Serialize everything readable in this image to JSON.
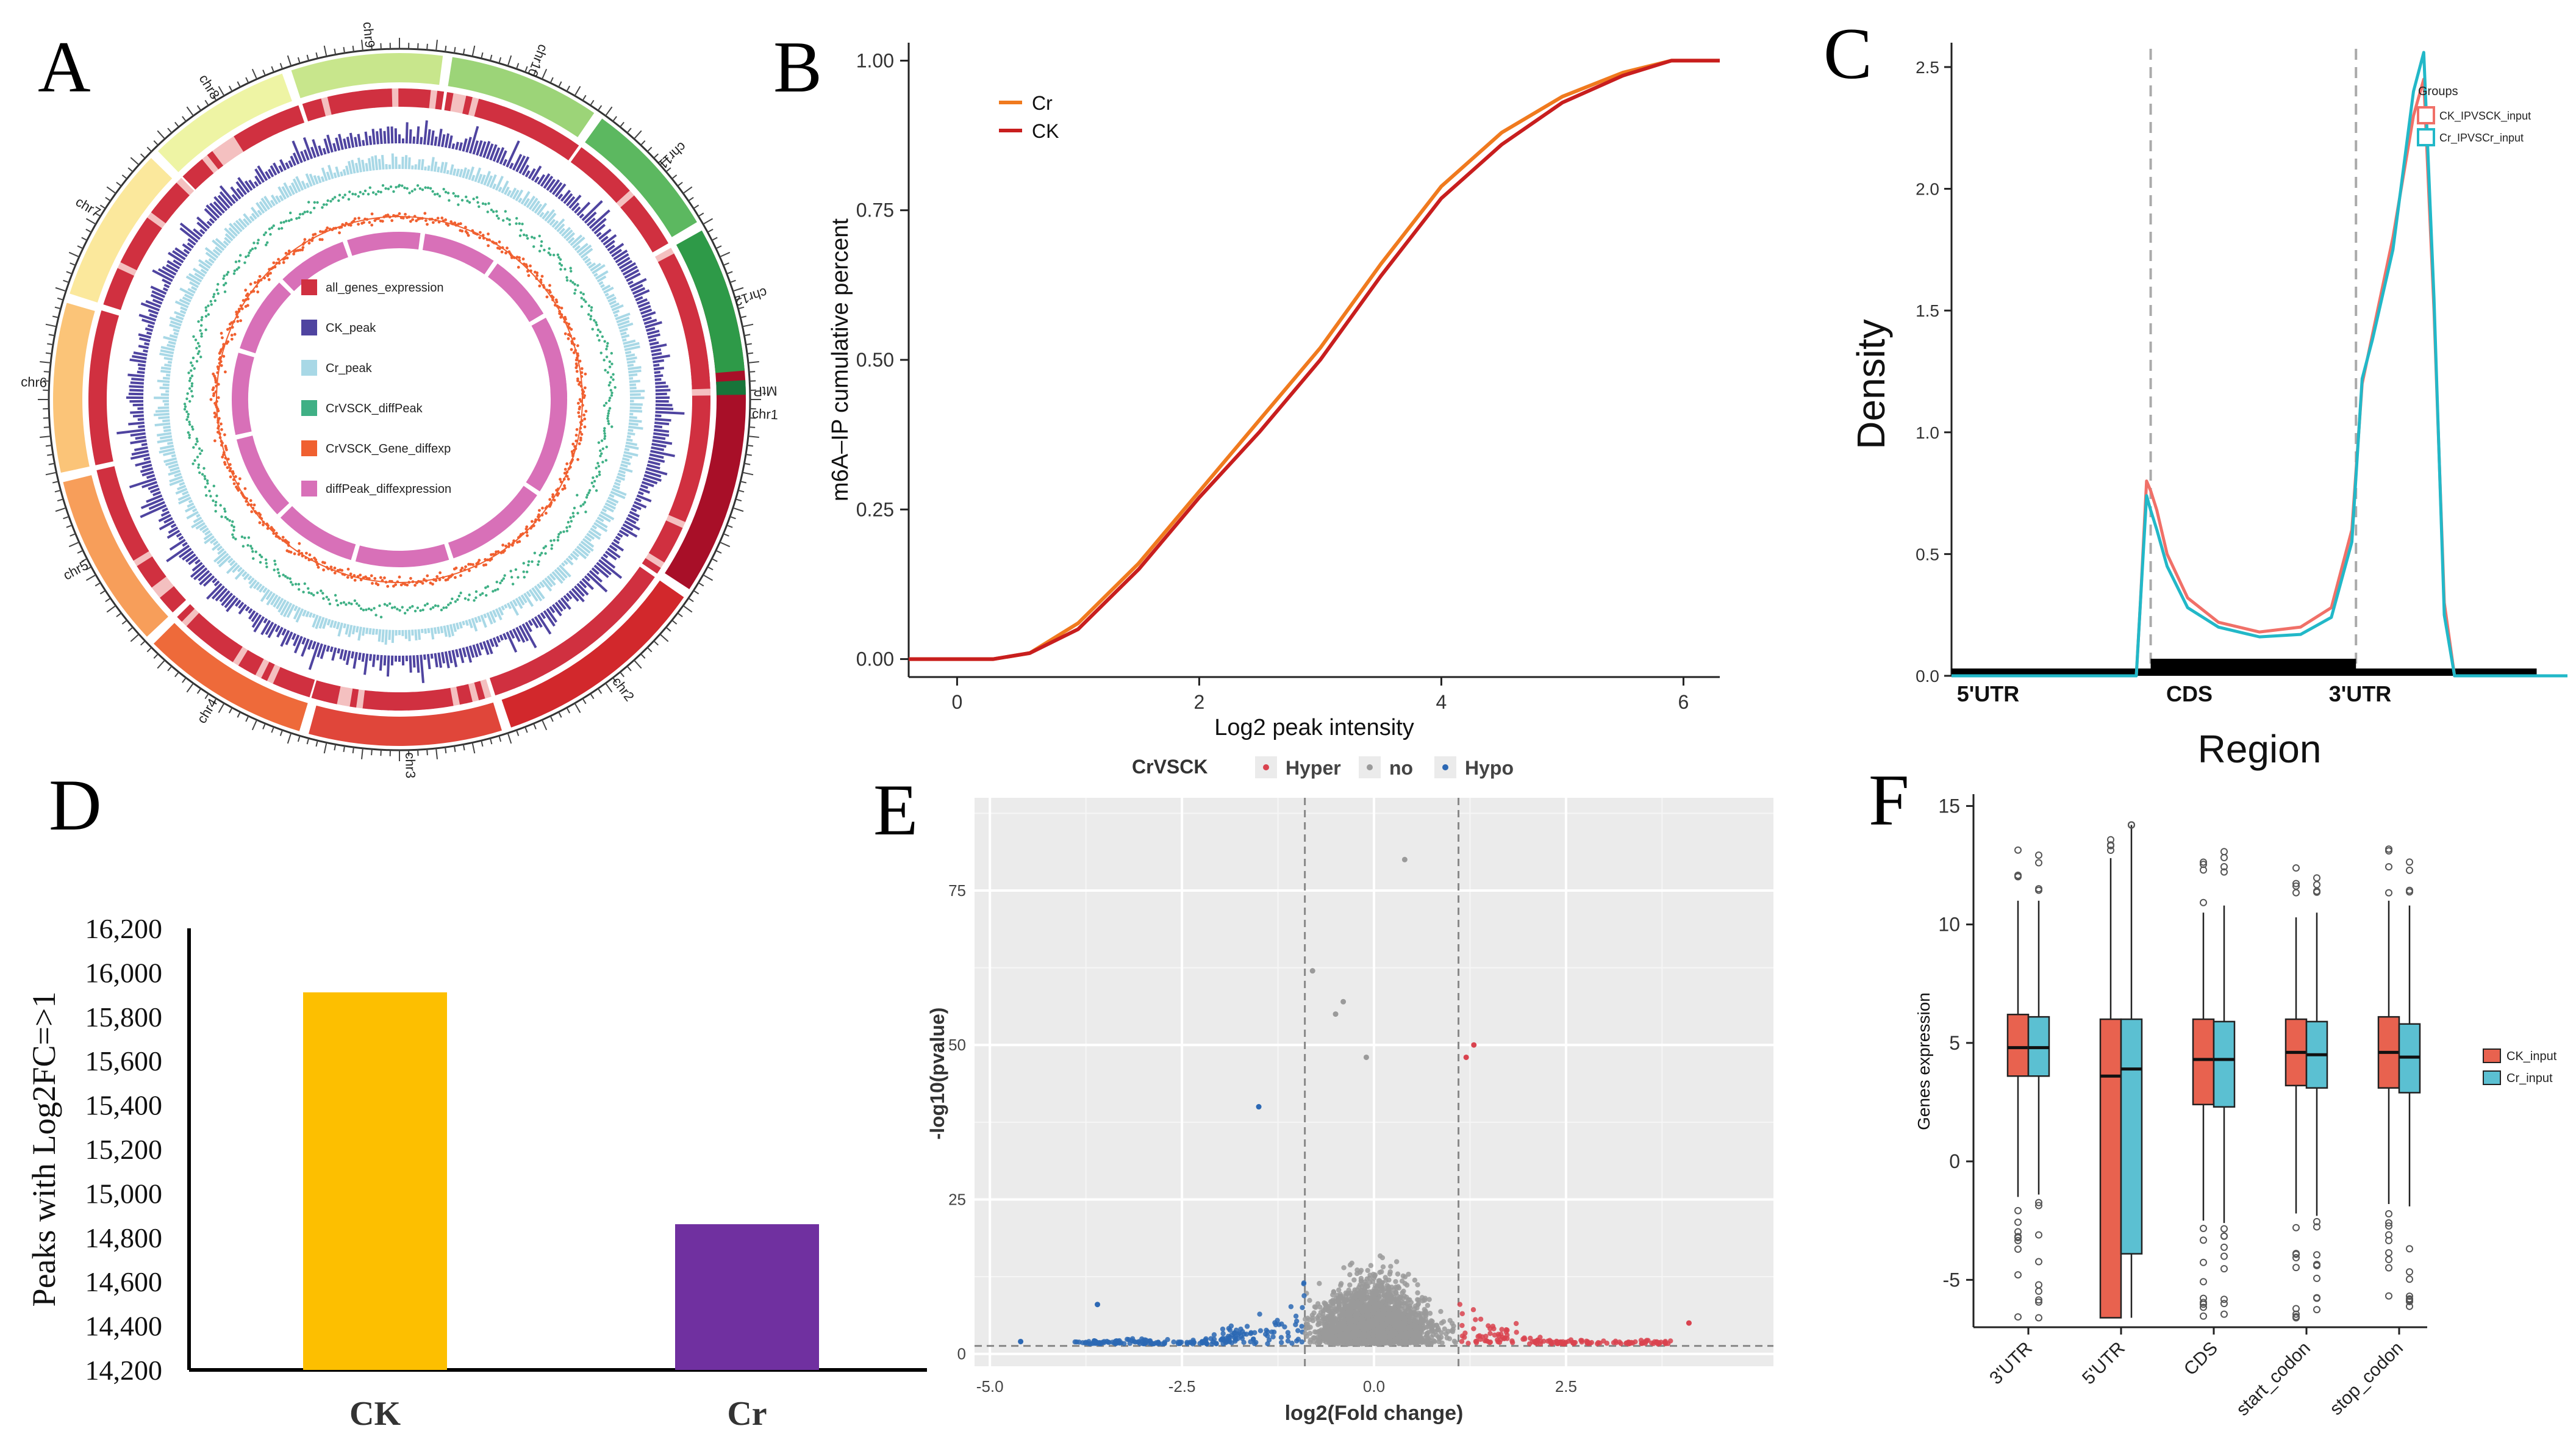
{
  "colors": {
    "cr": "#f07a1e",
    "ck": "#c81e1e",
    "ckline_c": "#f07068",
    "crline_c": "#22b8c8",
    "bar_ck": "#fdbf00",
    "bar_cr": "#7030a0",
    "hyper": "#d9434f",
    "no": "#9a9a9a",
    "hypo": "#2c68b4",
    "box_ck": "#e8624f",
    "box_cr": "#5bc0d2",
    "track_expr": "#d03040",
    "track_ck": "#4f44a0",
    "track_cr": "#a8d8e6",
    "track_diffpeak": "#3fb085",
    "track_gene": "#f06030",
    "track_dpexp": "#d870b8"
  },
  "panels": {
    "A": "A",
    "B": "B",
    "C": "C",
    "D": "D",
    "E": "E",
    "F": "F"
  },
  "chart_data": [
    {
      "panel": "A",
      "type": "other",
      "chromosomes": [
        "chr1",
        "chr2",
        "chr3",
        "chr4",
        "chr5",
        "chr6",
        "chr7",
        "chr8",
        "chr9",
        "chr10",
        "chr11",
        "chr12",
        "MtP"
      ],
      "legend": [
        "all_genes_expression",
        "CK_peak",
        "Cr_peak",
        "CrVSCK_diffPeak",
        "CrVSCK_Gene_diffexp",
        "diffPeak_diffexpression"
      ]
    },
    {
      "panel": "B",
      "type": "line",
      "xlabel": "Log2 peak intensity",
      "ylabel": "m6A–IP cumulative percent",
      "xlim": [
        -0.4,
        6.3
      ],
      "ylim": [
        -0.03,
        1.03
      ],
      "xticks": [
        0,
        2,
        4,
        6
      ],
      "yticks": [
        "0.00",
        "0.25",
        "0.50",
        "0.75",
        "1.00"
      ],
      "legend": [
        "Cr",
        "CK"
      ],
      "series": [
        {
          "name": "Cr",
          "x": [
            -0.4,
            0.3,
            0.6,
            1.0,
            1.5,
            2.0,
            2.5,
            3.0,
            3.5,
            4.0,
            4.5,
            5.0,
            5.5,
            5.9,
            6.3
          ],
          "y": [
            0,
            0,
            0.01,
            0.06,
            0.16,
            0.28,
            0.4,
            0.52,
            0.66,
            0.79,
            0.88,
            0.94,
            0.98,
            1.0,
            1.0
          ]
        },
        {
          "name": "CK",
          "x": [
            -0.4,
            0.3,
            0.6,
            1.0,
            1.5,
            2.0,
            2.5,
            3.0,
            3.5,
            4.0,
            4.5,
            5.0,
            5.5,
            5.9,
            6.3
          ],
          "y": [
            0,
            0,
            0.01,
            0.05,
            0.15,
            0.27,
            0.38,
            0.5,
            0.64,
            0.77,
            0.86,
            0.93,
            0.975,
            1.0,
            1.0
          ]
        }
      ]
    },
    {
      "panel": "C",
      "type": "line",
      "xlabel": "Region",
      "ylabel": "Density",
      "yticks": [
        "0.0",
        "0.5",
        "1.0",
        "1.5",
        "2.0",
        "2.5"
      ],
      "ylim": [
        0,
        2.6
      ],
      "regions": [
        "5'UTR",
        "CDS",
        "3'UTR"
      ],
      "legend_title": "Groups",
      "legend": [
        "CK_IPVSCK_input",
        "Cr_IPVSCr_input"
      ],
      "series": [
        {
          "name": "CK_IPVSCK_input",
          "x": [
            0,
            0.9,
            0.92,
            0.95,
            0.97,
            1.0,
            1.05,
            1.15,
            1.3,
            1.5,
            1.7,
            1.85,
            1.95,
            2.0,
            2.05,
            2.15,
            2.25,
            2.3,
            2.35,
            2.4,
            2.45,
            2.5,
            3.0
          ],
          "y": [
            0,
            0,
            0.3,
            0.8,
            0.76,
            0.68,
            0.5,
            0.32,
            0.22,
            0.18,
            0.2,
            0.28,
            0.6,
            1.2,
            1.4,
            1.8,
            2.3,
            2.45,
            1.5,
            0.3,
            0,
            0,
            0
          ]
        },
        {
          "name": "Cr_IPVSCr_input",
          "x": [
            0,
            0.9,
            0.92,
            0.95,
            0.97,
            1.0,
            1.05,
            1.15,
            1.3,
            1.5,
            1.7,
            1.85,
            1.95,
            2.0,
            2.05,
            2.15,
            2.25,
            2.3,
            2.35,
            2.4,
            2.45,
            2.5,
            3.0
          ],
          "y": [
            0,
            0,
            0.3,
            0.74,
            0.68,
            0.6,
            0.45,
            0.28,
            0.2,
            0.16,
            0.17,
            0.24,
            0.55,
            1.22,
            1.38,
            1.75,
            2.4,
            2.56,
            1.55,
            0.25,
            0,
            0,
            0
          ]
        }
      ]
    },
    {
      "panel": "D",
      "type": "bar",
      "ylabel": "Peaks with Log2FC=>1",
      "categories": [
        "CK",
        "Cr"
      ],
      "values": [
        15910,
        14860
      ],
      "ylim": [
        14200,
        16200
      ],
      "yticks": [
        "14,200",
        "14,400",
        "14,600",
        "14,800",
        "15,000",
        "15,200",
        "15,400",
        "15,600",
        "15,800",
        "16,000",
        "16,200"
      ]
    },
    {
      "panel": "E",
      "type": "scatter",
      "title": "CrVSCK",
      "legend": [
        "Hyper",
        "no",
        "Hypo"
      ],
      "xlabel": "log2(Fold change)",
      "ylabel": "-log10(pvalue)",
      "xlim": [
        -5.2,
        5.2
      ],
      "ylim": [
        -2,
        90
      ],
      "xticks": [
        "-5.0",
        "-2.5",
        "0.0",
        "2.5"
      ],
      "yticks": [
        "0",
        "25",
        "50",
        "75"
      ],
      "thresholds_x": [
        -0.9,
        1.1
      ],
      "threshold_y": 1.3,
      "highlight_points": [
        {
          "x": 0.4,
          "y": 80
        },
        {
          "x": -0.8,
          "y": 62
        },
        {
          "x": -0.4,
          "y": 57
        },
        {
          "x": -0.5,
          "y": 55
        },
        {
          "x": -0.1,
          "y": 48
        },
        {
          "x": -1.5,
          "y": 40
        },
        {
          "x": 1.3,
          "y": 50
        },
        {
          "x": 1.2,
          "y": 48
        },
        {
          "x": -3.6,
          "y": 8
        },
        {
          "x": 4.1,
          "y": 5
        },
        {
          "x": -4.6,
          "y": 2
        }
      ]
    },
    {
      "panel": "F",
      "type": "box",
      "ylabel": "Genes expression",
      "categories": [
        "3'UTR",
        "5'UTR",
        "CDS",
        "start_codon",
        "stop_codon"
      ],
      "yticks": [
        "-5",
        "0",
        "5",
        "10",
        "15"
      ],
      "ylim": [
        -7,
        15.5
      ],
      "legend": [
        "CK_input",
        "Cr_input"
      ],
      "series": [
        {
          "name": "CK_input",
          "boxes": [
            {
              "min": -1.5,
              "q1": 3.6,
              "median": 4.8,
              "q3": 6.2,
              "max": 11
            },
            {
              "min": -6.6,
              "q1": -6.6,
              "median": 3.6,
              "q3": 6.0,
              "max": 12.8
            },
            {
              "min": -2.5,
              "q1": 2.4,
              "median": 4.3,
              "q3": 6.0,
              "max": 10.5
            },
            {
              "min": -2.2,
              "q1": 3.2,
              "median": 4.6,
              "q3": 6.0,
              "max": 10.3
            },
            {
              "min": -1.8,
              "q1": 3.1,
              "median": 4.6,
              "q3": 6.1,
              "max": 11
            }
          ]
        },
        {
          "name": "Cr_input",
          "boxes": [
            {
              "min": -1.4,
              "q1": 3.6,
              "median": 4.8,
              "q3": 6.1,
              "max": 11
            },
            {
              "min": -6.6,
              "q1": -3.9,
              "median": 3.9,
              "q3": 6.0,
              "max": 14.2
            },
            {
              "min": -2.6,
              "q1": 2.3,
              "median": 4.3,
              "q3": 5.9,
              "max": 10.8
            },
            {
              "min": -2.3,
              "q1": 3.1,
              "median": 4.5,
              "q3": 5.9,
              "max": 10.5
            },
            {
              "min": -1.9,
              "q1": 2.9,
              "median": 4.4,
              "q3": 5.8,
              "max": 10.8
            }
          ]
        }
      ]
    }
  ]
}
